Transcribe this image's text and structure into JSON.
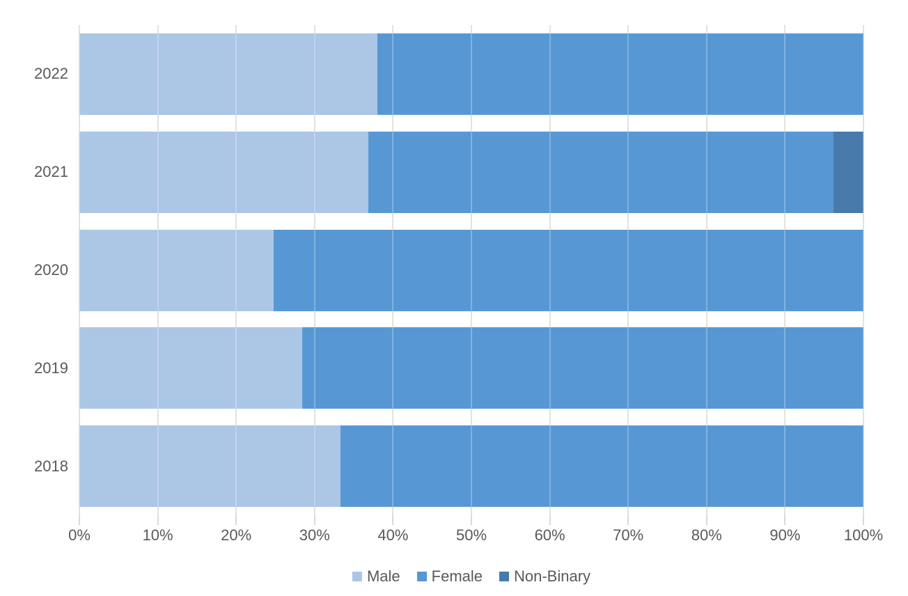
{
  "chart_data": {
    "type": "bar",
    "orientation": "horizontal",
    "stacked": true,
    "stacked_total": 100,
    "unit": "%",
    "title": "",
    "xlabel": "",
    "ylabel": "",
    "categories": [
      "2022",
      "2021",
      "2020",
      "2019",
      "2018"
    ],
    "series": [
      {
        "name": "Male",
        "color": "#ACC6E6",
        "values": [
          38.0,
          36.9,
          24.8,
          28.4,
          33.3
        ]
      },
      {
        "name": "Female",
        "color": "#5798D4",
        "values": [
          62.0,
          59.3,
          75.2,
          71.6,
          66.7
        ]
      },
      {
        "name": "Non-Binary",
        "color": "#487BAC",
        "values": [
          0,
          3.8,
          0,
          0,
          0
        ]
      }
    ],
    "xlim": [
      0,
      100
    ],
    "x_ticks": [
      "0%",
      "10%",
      "20%",
      "30%",
      "40%",
      "50%",
      "60%",
      "70%",
      "80%",
      "90%",
      "100%"
    ],
    "gridlines": "vertical",
    "legend_position": "bottom",
    "legend": [
      "Male",
      "Female",
      "Non-Binary"
    ],
    "colors": {
      "grid": "#D9D9D9",
      "grid_overlay_on_bars": "rgba(255,255,255,0.25)",
      "axis_text": "#595959",
      "background": "#FFFFFF"
    }
  }
}
